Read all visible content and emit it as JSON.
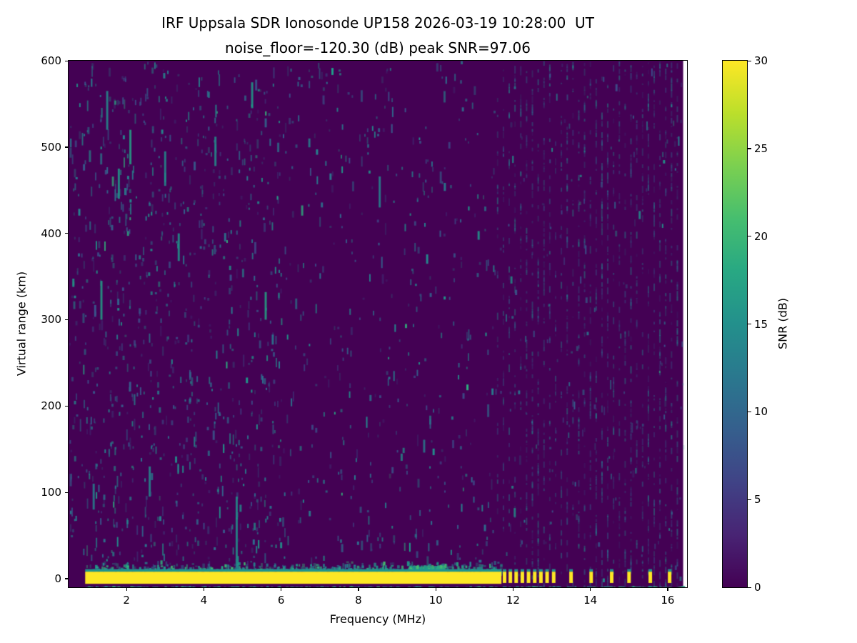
{
  "chart_data": {
    "type": "heatmap",
    "title": "IRF Uppsala SDR Ionosonde UP158 2026-03-19 10:28:00  UT",
    "subtitle": "noise_floor=-120.30 (dB) peak SNR=97.06",
    "xlabel": "Frequency (MHz)",
    "ylabel": "Virtual range (km)",
    "xlim": [
      0.5,
      16.5
    ],
    "ylim": [
      -10,
      600
    ],
    "xticks": [
      2,
      4,
      6,
      8,
      10,
      12,
      14,
      16
    ],
    "yticks": [
      0,
      100,
      200,
      300,
      400,
      500,
      600
    ],
    "grid": false,
    "colorbar": {
      "label": "SNR (dB)",
      "min": 0,
      "max": 30,
      "ticks": [
        0,
        5,
        10,
        15,
        20,
        25,
        30
      ],
      "colormap": "viridis"
    },
    "colors": {
      "background": "#ffffff",
      "snr_low": "#440154",
      "snr_high": "#fde725"
    },
    "features": {
      "data_x_end_mhz": 16.4,
      "ground_band": {
        "x_start_mhz": 0.93,
        "x_end_mhz": 11.7,
        "y_top_km": 8,
        "y_bottom_km": -6,
        "snr_db": 30
      },
      "pulses_mhz": [
        11.78,
        11.93,
        12.08,
        12.24,
        12.4,
        12.56,
        12.72,
        12.88,
        13.05,
        13.5,
        14.02,
        14.55,
        15.0,
        15.55,
        16.05
      ],
      "fringe_bump": {
        "f0_mhz": 9.3,
        "f1_mhz": 10.2,
        "y_top_km": 16
      },
      "streaks": [
        {
          "f": 1.35,
          "km0": 300,
          "km1": 345
        },
        {
          "f": 1.5,
          "km0": 520,
          "km1": 565
        },
        {
          "f": 1.8,
          "km0": 440,
          "km1": 475
        },
        {
          "f": 2.1,
          "km0": 480,
          "km1": 520
        },
        {
          "f": 3.0,
          "km0": 455,
          "km1": 495
        },
        {
          "f": 3.35,
          "km0": 368,
          "km1": 400
        },
        {
          "f": 4.3,
          "km0": 478,
          "km1": 512
        },
        {
          "f": 4.85,
          "km0": 12,
          "km1": 95
        },
        {
          "f": 5.25,
          "km0": 545,
          "km1": 575
        },
        {
          "f": 5.6,
          "km0": 300,
          "km1": 332
        },
        {
          "f": 8.55,
          "km0": 430,
          "km1": 466
        },
        {
          "f": 2.6,
          "km0": 95,
          "km1": 130
        },
        {
          "f": 1.15,
          "km0": 80,
          "km1": 110
        }
      ],
      "stripes": {
        "f0_mhz": 11.6,
        "f1_mhz": 16.35,
        "step_mhz": 0.15
      },
      "speckle_description": "sparse teal speckles over dark purple background, densest below 6 MHz, faint vertical striping from 11.5 to 16.3 MHz"
    }
  }
}
